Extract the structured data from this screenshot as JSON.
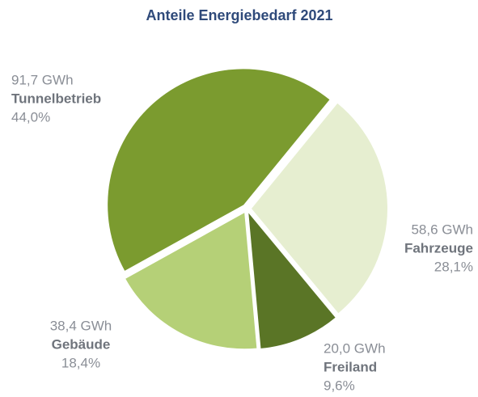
{
  "chart_data": {
    "type": "pie",
    "title": "Anteile Energiebedarf 2021",
    "categories": [
      "Tunnelbetrieb",
      "Fahrzeuge",
      "Freiland",
      "Gebäude"
    ],
    "values": [
      44.0,
      28.1,
      9.6,
      18.4
    ],
    "value_labels": [
      "44,0%",
      "28,1%",
      "9,6%",
      "18,4%"
    ],
    "energy_labels": [
      "91,7 GWh",
      "58,6 GWh",
      "20,0 GWh",
      "38,4 GWh"
    ],
    "colors": [
      "#7b9b2f",
      "#e6eed0",
      "#5a7526",
      "#b5d077"
    ]
  }
}
